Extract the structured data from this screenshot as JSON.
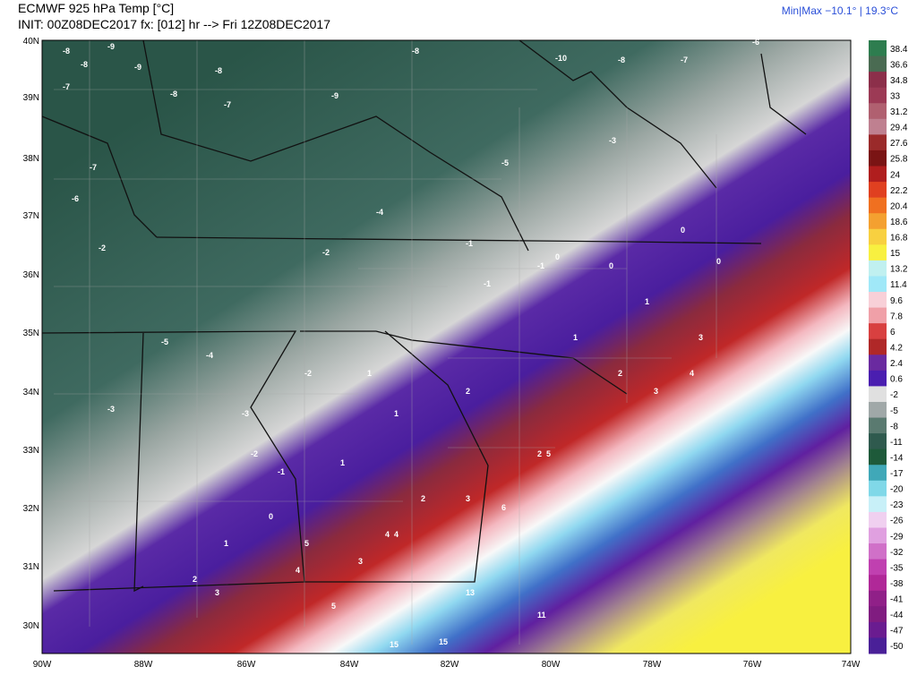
{
  "header": {
    "title": "ECMWF 925 hPa Temp [°C]",
    "init": "INIT: 00Z08DEC2017 fx: [012] hr --> Fri 12Z08DEC2017",
    "minmax": "Min|Max −10.1° | 19.3°C"
  },
  "lat_labels": [
    "40N",
    "39N",
    "38N",
    "37N",
    "36N",
    "35N",
    "34N",
    "33N",
    "32N",
    "31N",
    "30N"
  ],
  "lon_labels": [
    "90W",
    "88W",
    "86W",
    "84W",
    "82W",
    "80W",
    "78W",
    "76W",
    "74W"
  ],
  "colorbar": {
    "ticks": [
      38.4,
      36.6,
      34.8,
      33,
      31.2,
      29.4,
      27.6,
      25.8,
      24,
      22.2,
      20.4,
      18.6,
      16.8,
      15,
      13.2,
      11.4,
      9.6,
      7.8,
      6,
      4.2,
      2.4,
      0.6,
      -2,
      -5,
      -8,
      -11,
      -14,
      -17,
      -20,
      -23,
      -26,
      -29,
      -32,
      -35,
      -38,
      -41,
      -44,
      -47,
      -50
    ],
    "colors": [
      "#2e7d4f",
      "#4a6b52",
      "#8c2f4a",
      "#9c3a55",
      "#b06070",
      "#bf8090",
      "#9a2a2a",
      "#7a1414",
      "#b01e1e",
      "#e04020",
      "#f07020",
      "#f4a030",
      "#f8d040",
      "#f8f040",
      "#c0f0f0",
      "#a0e8f8",
      "#f8d0d8",
      "#f0a0a8",
      "#d84040",
      "#b02828",
      "#6a2aa0",
      "#4a1eb0",
      "#e0e0e0",
      "#a0a8a8",
      "#5a7a70",
      "#2f5a4e",
      "#1e5a3a",
      "#40a8b8",
      "#80d8e8",
      "#c8f0f8",
      "#f0d0f0",
      "#e0a0e0",
      "#d070c8",
      "#c040b0",
      "#b02898",
      "#902088",
      "#801c80",
      "#6a1c90",
      "#4a2098"
    ]
  },
  "map_labels": [
    "-8",
    "-9",
    "-8",
    "-9",
    "-8",
    "-7",
    "-6",
    "-10",
    "-8",
    "-7",
    "-8",
    "-7",
    "-9",
    "-8",
    "-6",
    "-7",
    "-5",
    "-4",
    "-3",
    "-2",
    "-1",
    "0",
    "0",
    "-1",
    "-1",
    "0",
    "0",
    "1",
    "1",
    "2",
    "3",
    "4",
    "3",
    "2",
    "1",
    "1",
    "2",
    "3",
    "4",
    "5",
    "5",
    "4",
    "3",
    "6",
    "11",
    "13",
    "15",
    "15",
    "-2",
    "-3",
    "-5",
    "-4",
    "-3",
    "-2",
    "-2",
    "-1",
    "0",
    "1",
    "2",
    "3",
    "5",
    "4",
    "2",
    "1"
  ]
}
